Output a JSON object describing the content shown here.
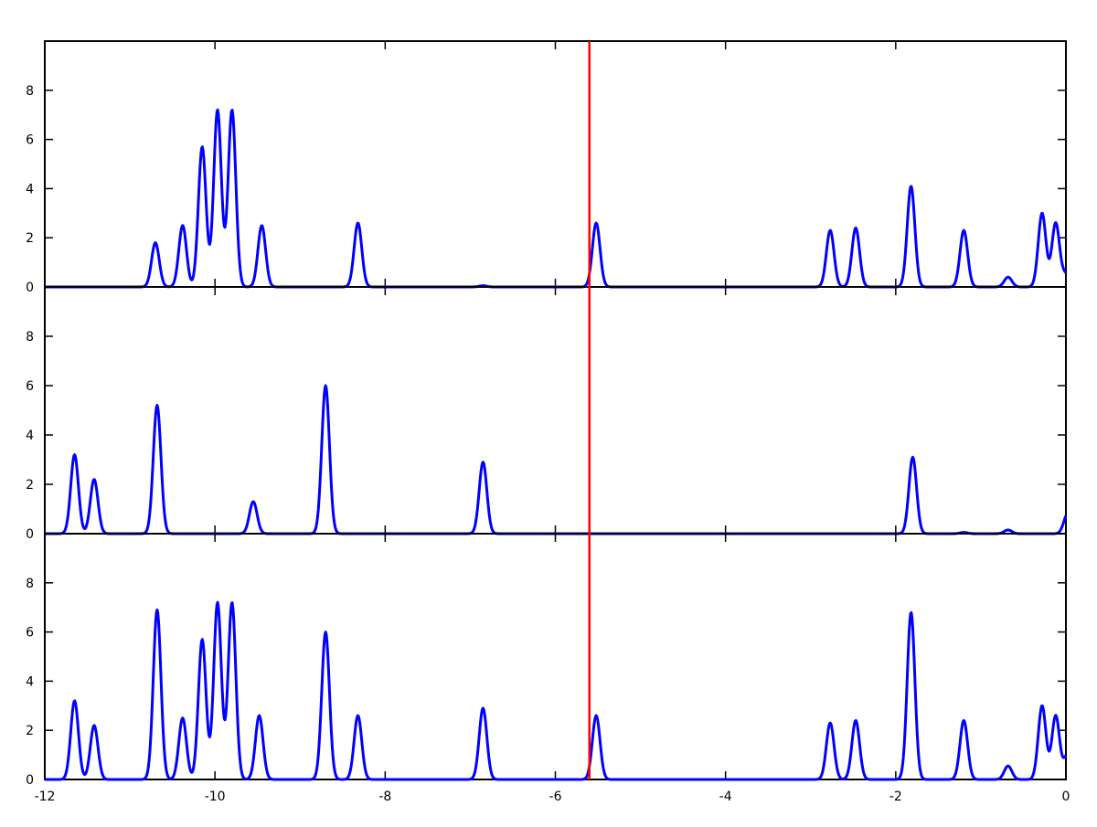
{
  "chart_data": {
    "type": "line",
    "layout": "three vertically stacked panels sharing one x axis",
    "title": "",
    "xlabel": "",
    "ylabel": "",
    "xlim": [
      -12,
      0
    ],
    "ylim": [
      0,
      10
    ],
    "xticks": [
      -12,
      -10,
      -8,
      -6,
      -4,
      -2,
      0
    ],
    "xtick_labels": [
      "-12",
      "-10",
      "-8",
      "-6",
      "-4",
      "-2",
      "0"
    ],
    "yticks": [
      0,
      2,
      4,
      6,
      8
    ],
    "ytick_labels": [
      "0",
      "2",
      "4",
      "6",
      "8"
    ],
    "grid": false,
    "legend": "none",
    "series_color": "#0000ff",
    "marker_line": {
      "x": -5.6,
      "color": "#ff0000"
    },
    "panels": [
      {
        "peaks": [
          {
            "x": -10.7,
            "y": 1.8
          },
          {
            "x": -10.38,
            "y": 2.5
          },
          {
            "x": -10.15,
            "y": 5.7
          },
          {
            "x": -9.97,
            "y": 7.2
          },
          {
            "x": -9.8,
            "y": 7.2
          },
          {
            "x": -9.45,
            "y": 2.5
          },
          {
            "x": -8.32,
            "y": 2.6
          },
          {
            "x": -6.85,
            "y": 0.05
          },
          {
            "x": -5.52,
            "y": 2.6
          },
          {
            "x": -2.77,
            "y": 2.3
          },
          {
            "x": -2.47,
            "y": 2.4
          },
          {
            "x": -1.82,
            "y": 4.1
          },
          {
            "x": -1.2,
            "y": 2.3
          },
          {
            "x": -0.68,
            "y": 0.4
          },
          {
            "x": -0.28,
            "y": 3.0
          },
          {
            "x": -0.12,
            "y": 2.6
          },
          {
            "x": 0.0,
            "y": 0.5
          }
        ]
      },
      {
        "peaks": [
          {
            "x": -11.65,
            "y": 3.2
          },
          {
            "x": -11.42,
            "y": 2.2
          },
          {
            "x": -10.68,
            "y": 5.2
          },
          {
            "x": -9.55,
            "y": 1.3
          },
          {
            "x": -8.7,
            "y": 6.0
          },
          {
            "x": -6.85,
            "y": 2.9
          },
          {
            "x": -1.8,
            "y": 3.1
          },
          {
            "x": -1.2,
            "y": 0.05
          },
          {
            "x": -0.68,
            "y": 0.15
          },
          {
            "x": 0.02,
            "y": 0.8
          }
        ]
      },
      {
        "peaks": [
          {
            "x": -11.65,
            "y": 3.2
          },
          {
            "x": -11.42,
            "y": 2.2
          },
          {
            "x": -10.68,
            "y": 6.9
          },
          {
            "x": -10.38,
            "y": 2.5
          },
          {
            "x": -10.15,
            "y": 5.7
          },
          {
            "x": -9.97,
            "y": 7.2
          },
          {
            "x": -9.8,
            "y": 7.2
          },
          {
            "x": -9.48,
            "y": 2.6
          },
          {
            "x": -8.7,
            "y": 6.0
          },
          {
            "x": -8.32,
            "y": 2.6
          },
          {
            "x": -6.85,
            "y": 2.9
          },
          {
            "x": -5.52,
            "y": 2.6
          },
          {
            "x": -2.77,
            "y": 2.3
          },
          {
            "x": -2.47,
            "y": 2.4
          },
          {
            "x": -1.82,
            "y": 6.8
          },
          {
            "x": -1.2,
            "y": 2.4
          },
          {
            "x": -0.68,
            "y": 0.55
          },
          {
            "x": -0.28,
            "y": 3.0
          },
          {
            "x": -0.12,
            "y": 2.6
          },
          {
            "x": 0.02,
            "y": 1.0
          }
        ]
      }
    ]
  }
}
